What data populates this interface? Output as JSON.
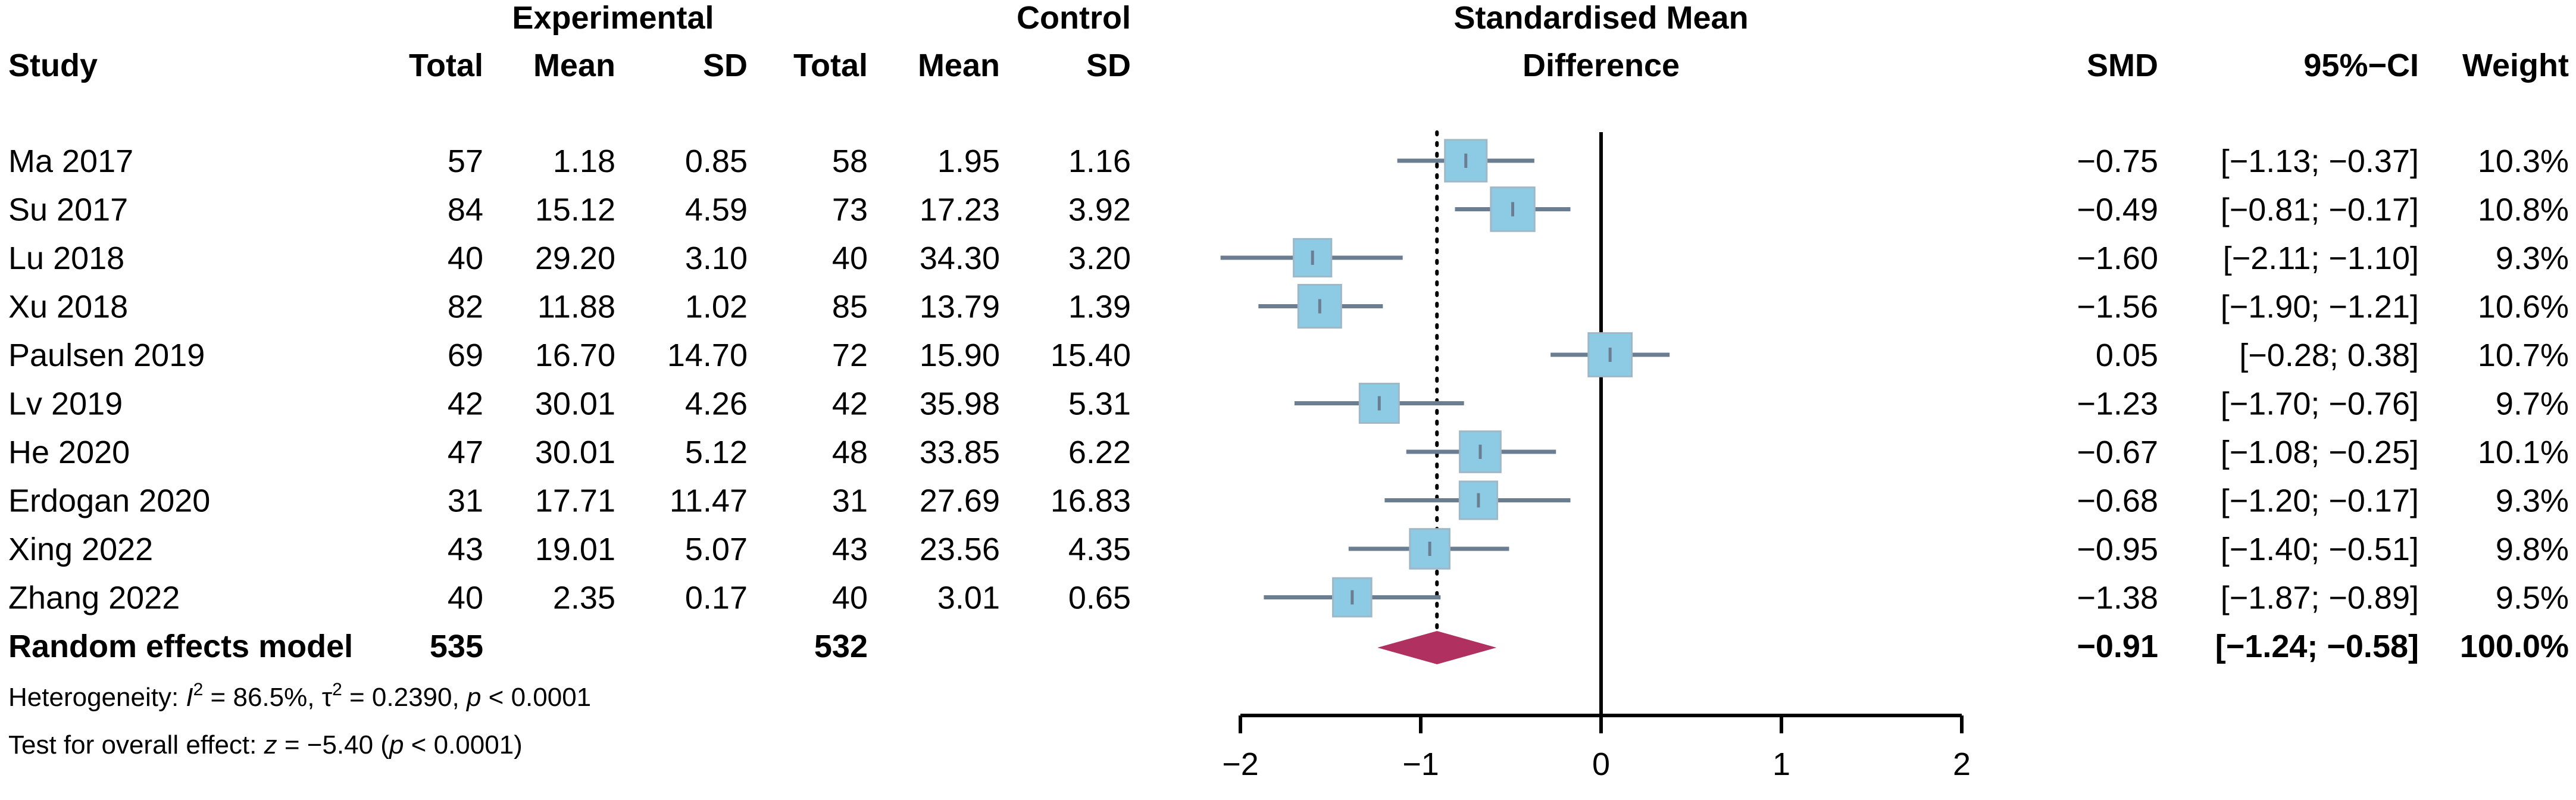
{
  "header": {
    "group_experimental": "Experimental",
    "group_control": "Control",
    "smd_title_line1": "Standardised Mean",
    "smd_title_line2": "Difference",
    "col_study": "Study",
    "col_exp_total": "Total",
    "col_exp_mean": "Mean",
    "col_exp_sd": "SD",
    "col_ctl_total": "Total",
    "col_ctl_mean": "Mean",
    "col_ctl_sd": "SD",
    "col_smd": "SMD",
    "col_ci": "95%−CI",
    "col_weight": "Weight"
  },
  "chart_data": {
    "type": "forest",
    "x_axis": {
      "min": -2,
      "max": 2,
      "ticks": [
        "−2",
        "−1",
        "0",
        "1",
        "2"
      ],
      "tick_values": [
        -2,
        -1,
        0,
        1,
        2
      ]
    },
    "null_line": 0,
    "pooled_reference_line": -0.91,
    "studies": [
      {
        "name": "Ma 2017",
        "exp_total": "57",
        "exp_mean": "1.18",
        "exp_sd": "0.85",
        "ctl_total": "58",
        "ctl_mean": "1.95",
        "ctl_sd": "1.16",
        "smd_label": "−0.75",
        "ci_label": "[−1.13; −0.37]",
        "weight_label": "10.3%",
        "smd": -0.75,
        "lo": -1.13,
        "hi": -0.37,
        "weight": 10.3
      },
      {
        "name": "Su  2017",
        "exp_total": "84",
        "exp_mean": "15.12",
        "exp_sd": "4.59",
        "ctl_total": "73",
        "ctl_mean": "17.23",
        "ctl_sd": "3.92",
        "smd_label": "−0.49",
        "ci_label": "[−0.81; −0.17]",
        "weight_label": "10.8%",
        "smd": -0.49,
        "lo": -0.81,
        "hi": -0.17,
        "weight": 10.8
      },
      {
        "name": "Lu 2018",
        "exp_total": "40",
        "exp_mean": "29.20",
        "exp_sd": "3.10",
        "ctl_total": "40",
        "ctl_mean": "34.30",
        "ctl_sd": "3.20",
        "smd_label": "−1.60",
        "ci_label": "[−2.11; −1.10]",
        "weight_label": "9.3%",
        "smd": -1.6,
        "lo": -2.11,
        "hi": -1.1,
        "weight": 9.3
      },
      {
        "name": "Xu 2018",
        "exp_total": "82",
        "exp_mean": "11.88",
        "exp_sd": "1.02",
        "ctl_total": "85",
        "ctl_mean": "13.79",
        "ctl_sd": "1.39",
        "smd_label": "−1.56",
        "ci_label": "[−1.90; −1.21]",
        "weight_label": "10.6%",
        "smd": -1.56,
        "lo": -1.9,
        "hi": -1.21,
        "weight": 10.6
      },
      {
        "name": "Paulsen 2019",
        "exp_total": "69",
        "exp_mean": "16.70",
        "exp_sd": "14.70",
        "ctl_total": "72",
        "ctl_mean": "15.90",
        "ctl_sd": "15.40",
        "smd_label": "0.05",
        "ci_label": "[−0.28;  0.38]",
        "weight_label": "10.7%",
        "smd": 0.05,
        "lo": -0.28,
        "hi": 0.38,
        "weight": 10.7
      },
      {
        "name": "Lv 2019",
        "exp_total": "42",
        "exp_mean": "30.01",
        "exp_sd": "4.26",
        "ctl_total": "42",
        "ctl_mean": "35.98",
        "ctl_sd": "5.31",
        "smd_label": "−1.23",
        "ci_label": "[−1.70; −0.76]",
        "weight_label": "9.7%",
        "smd": -1.23,
        "lo": -1.7,
        "hi": -0.76,
        "weight": 9.7
      },
      {
        "name": "He 2020",
        "exp_total": "47",
        "exp_mean": "30.01",
        "exp_sd": "5.12",
        "ctl_total": "48",
        "ctl_mean": "33.85",
        "ctl_sd": "6.22",
        "smd_label": "−0.67",
        "ci_label": "[−1.08; −0.25]",
        "weight_label": "10.1%",
        "smd": -0.67,
        "lo": -1.08,
        "hi": -0.25,
        "weight": 10.1
      },
      {
        "name": "Erdogan 2020",
        "exp_total": "31",
        "exp_mean": "17.71",
        "exp_sd": "11.47",
        "ctl_total": "31",
        "ctl_mean": "27.69",
        "ctl_sd": "16.83",
        "smd_label": "−0.68",
        "ci_label": "[−1.20; −0.17]",
        "weight_label": "9.3%",
        "smd": -0.68,
        "lo": -1.2,
        "hi": -0.17,
        "weight": 9.3
      },
      {
        "name": "Xing 2022",
        "exp_total": "43",
        "exp_mean": "19.01",
        "exp_sd": "5.07",
        "ctl_total": "43",
        "ctl_mean": "23.56",
        "ctl_sd": "4.35",
        "smd_label": "−0.95",
        "ci_label": "[−1.40; −0.51]",
        "weight_label": "9.8%",
        "smd": -0.95,
        "lo": -1.4,
        "hi": -0.51,
        "weight": 9.8
      },
      {
        "name": "Zhang 2022",
        "exp_total": "40",
        "exp_mean": "2.35",
        "exp_sd": "0.17",
        "ctl_total": "40",
        "ctl_mean": "3.01",
        "ctl_sd": "0.65",
        "smd_label": "−1.38",
        "ci_label": "[−1.87; −0.89]",
        "weight_label": "9.5%",
        "smd": -1.38,
        "lo": -1.87,
        "hi": -0.89,
        "weight": 9.5
      }
    ],
    "pooled": {
      "label": "Random effects model",
      "exp_total": "535",
      "ctl_total": "532",
      "smd_label": "−0.91",
      "ci_label": "[−1.24; −0.58]",
      "weight_label": "100.0%",
      "smd": -0.91,
      "lo": -1.24,
      "hi": -0.58
    },
    "heterogeneity": {
      "prefix": "Heterogeneity: ",
      "i2_symbol": "I",
      "i2_sup": "2",
      "i2_value": " = 86.5%, ",
      "tau_symbol": "τ",
      "tau_sup": "2",
      "tau_value": " = 0.2390, ",
      "p_symbol": "p",
      "p_value": " < 0.0001"
    },
    "overall_test": {
      "prefix": "Test for overall effect: ",
      "z_symbol": "z",
      "z_value": " = −5.40 (",
      "p_symbol": "p",
      "p_value": " < 0.0001)"
    },
    "colors": {
      "box_fill": "#8dcbe5",
      "box_stroke": "#9fb8c8",
      "ci_line": "#6b7e91",
      "diamond": "#b03060",
      "axis": "#000000"
    }
  }
}
